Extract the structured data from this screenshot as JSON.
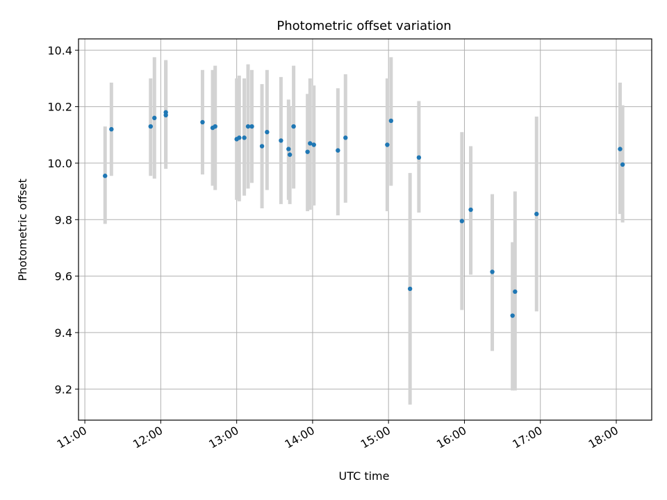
{
  "chart_data": {
    "type": "scatter",
    "title": "Photometric offset variation",
    "xlabel": "UTC time",
    "ylabel": "Photometric offset",
    "x_axis": "time (UTC, hours)",
    "xlim": [
      "10:55",
      "18:28"
    ],
    "ylim": [
      9.09,
      10.44
    ],
    "xticks": [
      "11:00",
      "12:00",
      "13:00",
      "14:00",
      "15:00",
      "16:00",
      "17:00",
      "18:00"
    ],
    "yticks": [
      9.2,
      9.4,
      9.6,
      9.8,
      10.0,
      10.2,
      10.4
    ],
    "grid": true,
    "colors": {
      "marker": "#1f77b4",
      "errorbar": "#d3d3d3"
    },
    "points": [
      {
        "x": "11:16",
        "y": 9.955,
        "ylo": 9.785,
        "yhi": 10.13
      },
      {
        "x": "11:21",
        "y": 10.12,
        "ylo": 9.955,
        "yhi": 10.285
      },
      {
        "x": "11:52",
        "y": 10.13,
        "ylo": 9.955,
        "yhi": 10.3
      },
      {
        "x": "11:55",
        "y": 10.16,
        "ylo": 9.945,
        "yhi": 10.375
      },
      {
        "x": "12:04",
        "y": 10.18,
        "ylo": 9.98,
        "yhi": 10.365
      },
      {
        "x": "12:04",
        "y": 10.17,
        "ylo": 10.0,
        "yhi": 10.36
      },
      {
        "x": "12:33",
        "y": 10.145,
        "ylo": 9.96,
        "yhi": 10.33
      },
      {
        "x": "12:41",
        "y": 10.125,
        "ylo": 9.92,
        "yhi": 10.33
      },
      {
        "x": "12:43",
        "y": 10.13,
        "ylo": 9.905,
        "yhi": 10.345
      },
      {
        "x": "13:00",
        "y": 10.085,
        "ylo": 9.87,
        "yhi": 10.3
      },
      {
        "x": "13:02",
        "y": 10.09,
        "ylo": 9.865,
        "yhi": 10.31
      },
      {
        "x": "13:06",
        "y": 10.09,
        "ylo": 9.885,
        "yhi": 10.3
      },
      {
        "x": "13:09",
        "y": 10.13,
        "ylo": 9.91,
        "yhi": 10.35
      },
      {
        "x": "13:12",
        "y": 10.13,
        "ylo": 9.93,
        "yhi": 10.33
      },
      {
        "x": "13:20",
        "y": 10.06,
        "ylo": 9.84,
        "yhi": 10.28
      },
      {
        "x": "13:24",
        "y": 10.11,
        "ylo": 9.905,
        "yhi": 10.33
      },
      {
        "x": "13:35",
        "y": 10.08,
        "ylo": 9.855,
        "yhi": 10.305
      },
      {
        "x": "13:41",
        "y": 10.05,
        "ylo": 9.87,
        "yhi": 10.225
      },
      {
        "x": "13:42",
        "y": 10.03,
        "ylo": 9.855,
        "yhi": 10.2
      },
      {
        "x": "13:45",
        "y": 10.13,
        "ylo": 9.91,
        "yhi": 10.345
      },
      {
        "x": "13:56",
        "y": 10.04,
        "ylo": 9.83,
        "yhi": 10.245
      },
      {
        "x": "13:58",
        "y": 10.07,
        "ylo": 9.835,
        "yhi": 10.3
      },
      {
        "x": "14:01",
        "y": 10.065,
        "ylo": 9.85,
        "yhi": 10.275
      },
      {
        "x": "14:20",
        "y": 10.045,
        "ylo": 9.815,
        "yhi": 10.265
      },
      {
        "x": "14:26",
        "y": 10.09,
        "ylo": 9.86,
        "yhi": 10.315
      },
      {
        "x": "14:59",
        "y": 10.065,
        "ylo": 9.83,
        "yhi": 10.3
      },
      {
        "x": "15:02",
        "y": 10.15,
        "ylo": 9.92,
        "yhi": 10.375
      },
      {
        "x": "15:17",
        "y": 9.555,
        "ylo": 9.145,
        "yhi": 9.965
      },
      {
        "x": "15:24",
        "y": 10.02,
        "ylo": 9.825,
        "yhi": 10.22
      },
      {
        "x": "15:58",
        "y": 9.795,
        "ylo": 9.48,
        "yhi": 10.11
      },
      {
        "x": "16:05",
        "y": 9.835,
        "ylo": 9.605,
        "yhi": 10.06
      },
      {
        "x": "16:22",
        "y": 9.615,
        "ylo": 9.335,
        "yhi": 9.89
      },
      {
        "x": "16:38",
        "y": 9.46,
        "ylo": 9.195,
        "yhi": 9.72
      },
      {
        "x": "16:40",
        "y": 9.545,
        "ylo": 9.195,
        "yhi": 9.9
      },
      {
        "x": "16:57",
        "y": 9.82,
        "ylo": 9.475,
        "yhi": 10.165
      },
      {
        "x": "18:03",
        "y": 10.05,
        "ylo": 9.82,
        "yhi": 10.285
      },
      {
        "x": "18:05",
        "y": 9.995,
        "ylo": 9.79,
        "yhi": 10.205
      }
    ]
  }
}
